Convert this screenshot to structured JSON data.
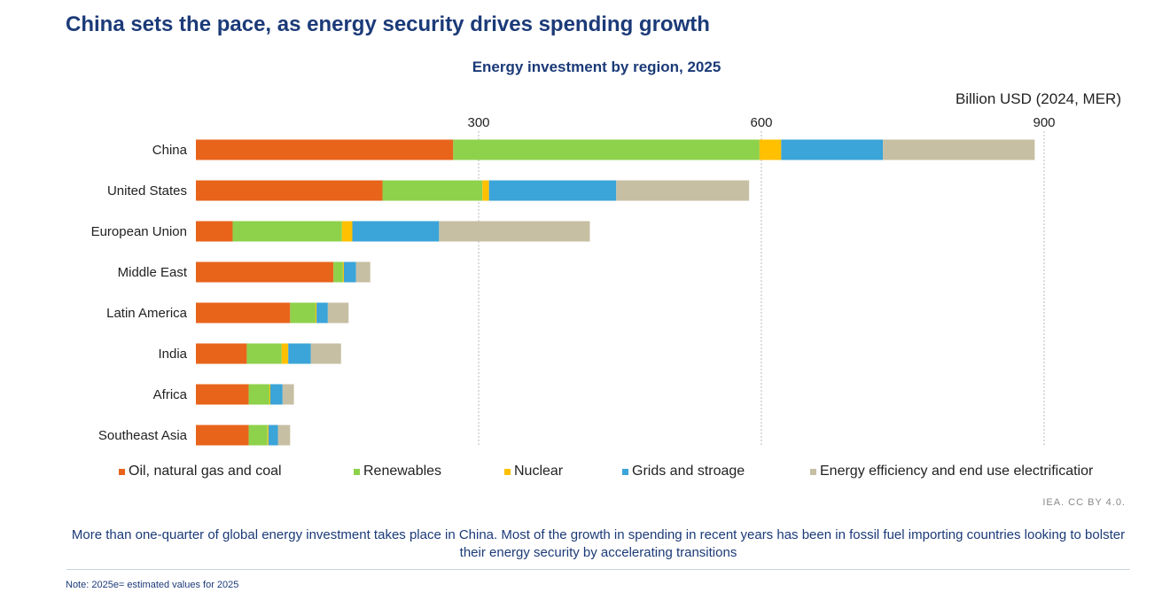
{
  "header": {
    "title": "China sets the pace, as energy security drives spending growth"
  },
  "chart_data": {
    "type": "bar",
    "orientation": "horizontal",
    "stacked": true,
    "title": "Energy investment by region, 2025",
    "unit_label": "Billion USD (2024, MER)",
    "x_ticks": [
      300,
      600,
      900
    ],
    "xlim": [
      0,
      900
    ],
    "grid": "vertical dashed at ticks",
    "legend_position": "bottom",
    "categories": [
      "China",
      "United States",
      "European Union",
      "Middle East",
      "Latin America",
      "India",
      "Africa",
      "Southeast Asia"
    ],
    "series": [
      {
        "name": "Oil, natural gas and coal",
        "color": "#e8641b",
        "values": [
          273,
          198,
          39,
          146,
          100,
          54,
          56,
          56
        ]
      },
      {
        "name": "Renewables",
        "color": "#8ed14b",
        "values": [
          325,
          106,
          116,
          10,
          27,
          37,
          22,
          20
        ]
      },
      {
        "name": "Nuclear",
        "color": "#ffc000",
        "values": [
          23,
          7,
          11,
          1,
          1,
          7,
          1,
          1
        ]
      },
      {
        "name": "Grids and stroage",
        "color": "#3ba4d8",
        "values": [
          108,
          135,
          92,
          13,
          12,
          24,
          13,
          10
        ]
      },
      {
        "name": "Energy efficiency and end use electrificatior",
        "color": "#c7bfa3",
        "values": [
          161,
          141,
          160,
          15,
          22,
          32,
          12,
          13
        ]
      }
    ]
  },
  "footer": {
    "credit": "IEA. CC BY 4.0.",
    "caption": "More than one-quarter of global energy investment takes place in China. Most of the growth in spending in recent years has been in fossil fuel importing countries looking to bolster their energy security by accelerating transitions",
    "note": "Note: 2025e= estimated values for 2025"
  }
}
